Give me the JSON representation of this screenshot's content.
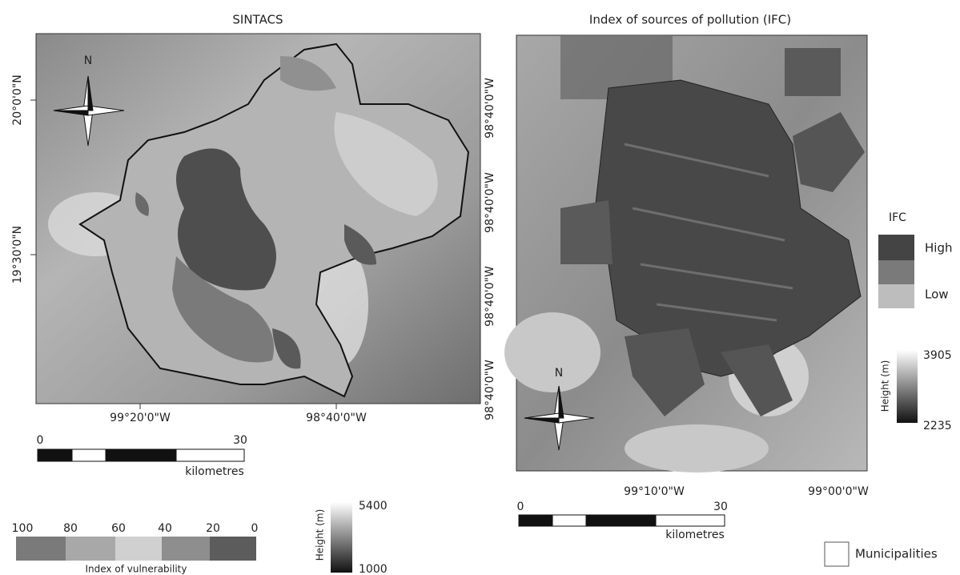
{
  "left_panel": {
    "title": "SINTACS",
    "north": "N",
    "lat_labels": [
      "20°0'0\"N",
      "19°30'0\"N"
    ],
    "lon_labels": [
      "99°20'0\"W",
      "98°40'0\"W"
    ],
    "scale": {
      "start": "0",
      "end": "30",
      "unit": "kilometres"
    },
    "vulnerability_legend": {
      "ticks": [
        "100",
        "80",
        "60",
        "40",
        "20",
        "0"
      ],
      "caption": "Index of vulnerability"
    },
    "height_legend": {
      "title": "Height (m)",
      "max": "5400",
      "min": "1000"
    }
  },
  "right_panel": {
    "title": "Index of sources of pollution (IFC)",
    "north": "N",
    "lon_labels_left": [
      "98°40'0\"W",
      "98°40'0\"W",
      "98°40'0\"W",
      "98°40'0\"W"
    ],
    "lon_labels_bottom": [
      "99°10'0\"W",
      "99°00'0\"W"
    ],
    "scale": {
      "start": "0",
      "end": "30",
      "unit": "kilometres"
    },
    "ifc_legend": {
      "title": "IFC",
      "high": "High",
      "low": "Low"
    },
    "height_legend": {
      "title": "Height (m)",
      "max": "3905",
      "min": "2235"
    },
    "municipalities": "Municipalities"
  }
}
